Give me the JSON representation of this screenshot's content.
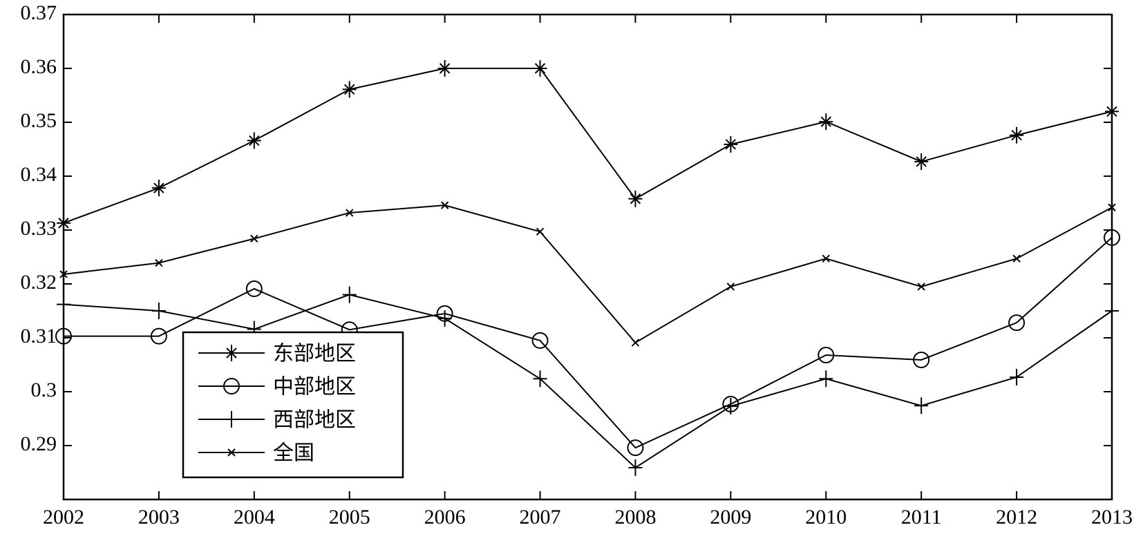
{
  "chart_data": {
    "type": "line",
    "x": [
      2002,
      2003,
      2004,
      2005,
      2006,
      2007,
      2008,
      2009,
      2010,
      2011,
      2012,
      2013
    ],
    "xlim": [
      2002,
      2013
    ],
    "xticks": [
      2002,
      2003,
      2004,
      2005,
      2006,
      2007,
      2008,
      2009,
      2010,
      2011,
      2012,
      2013
    ],
    "ylim": [
      0.28,
      0.37
    ],
    "yticks": [
      0.29,
      0.3,
      0.31,
      0.32,
      0.33,
      0.34,
      0.35,
      0.36,
      0.37
    ],
    "legend": "lower left",
    "series": [
      {
        "name": "东部地区",
        "color": "#000000",
        "marker": "star",
        "values": [
          0.3313,
          0.3378,
          0.3466,
          0.3561,
          0.36,
          0.36,
          0.3358,
          0.3459,
          0.3501,
          0.3427,
          0.3476,
          0.352
        ]
      },
      {
        "name": "中部地区",
        "color": "#000000",
        "marker": "circle",
        "values": [
          0.3103,
          0.3103,
          0.3191,
          0.3115,
          0.3145,
          0.3095,
          0.2896,
          0.2977,
          0.3068,
          0.3059,
          0.3128,
          0.3286
        ]
      },
      {
        "name": "西部地区",
        "color": "#000000",
        "marker": "plus",
        "values": [
          0.3162,
          0.315,
          0.3116,
          0.318,
          0.3136,
          0.3024,
          0.2859,
          0.2973,
          0.3024,
          0.2974,
          0.3027,
          0.315
        ]
      },
      {
        "name": "全国",
        "color": "#000000",
        "marker": "x",
        "values": [
          0.3218,
          0.3239,
          0.3284,
          0.3332,
          0.3346,
          0.3297,
          0.3091,
          0.3195,
          0.3247,
          0.3195,
          0.3247,
          0.3342
        ]
      }
    ]
  }
}
